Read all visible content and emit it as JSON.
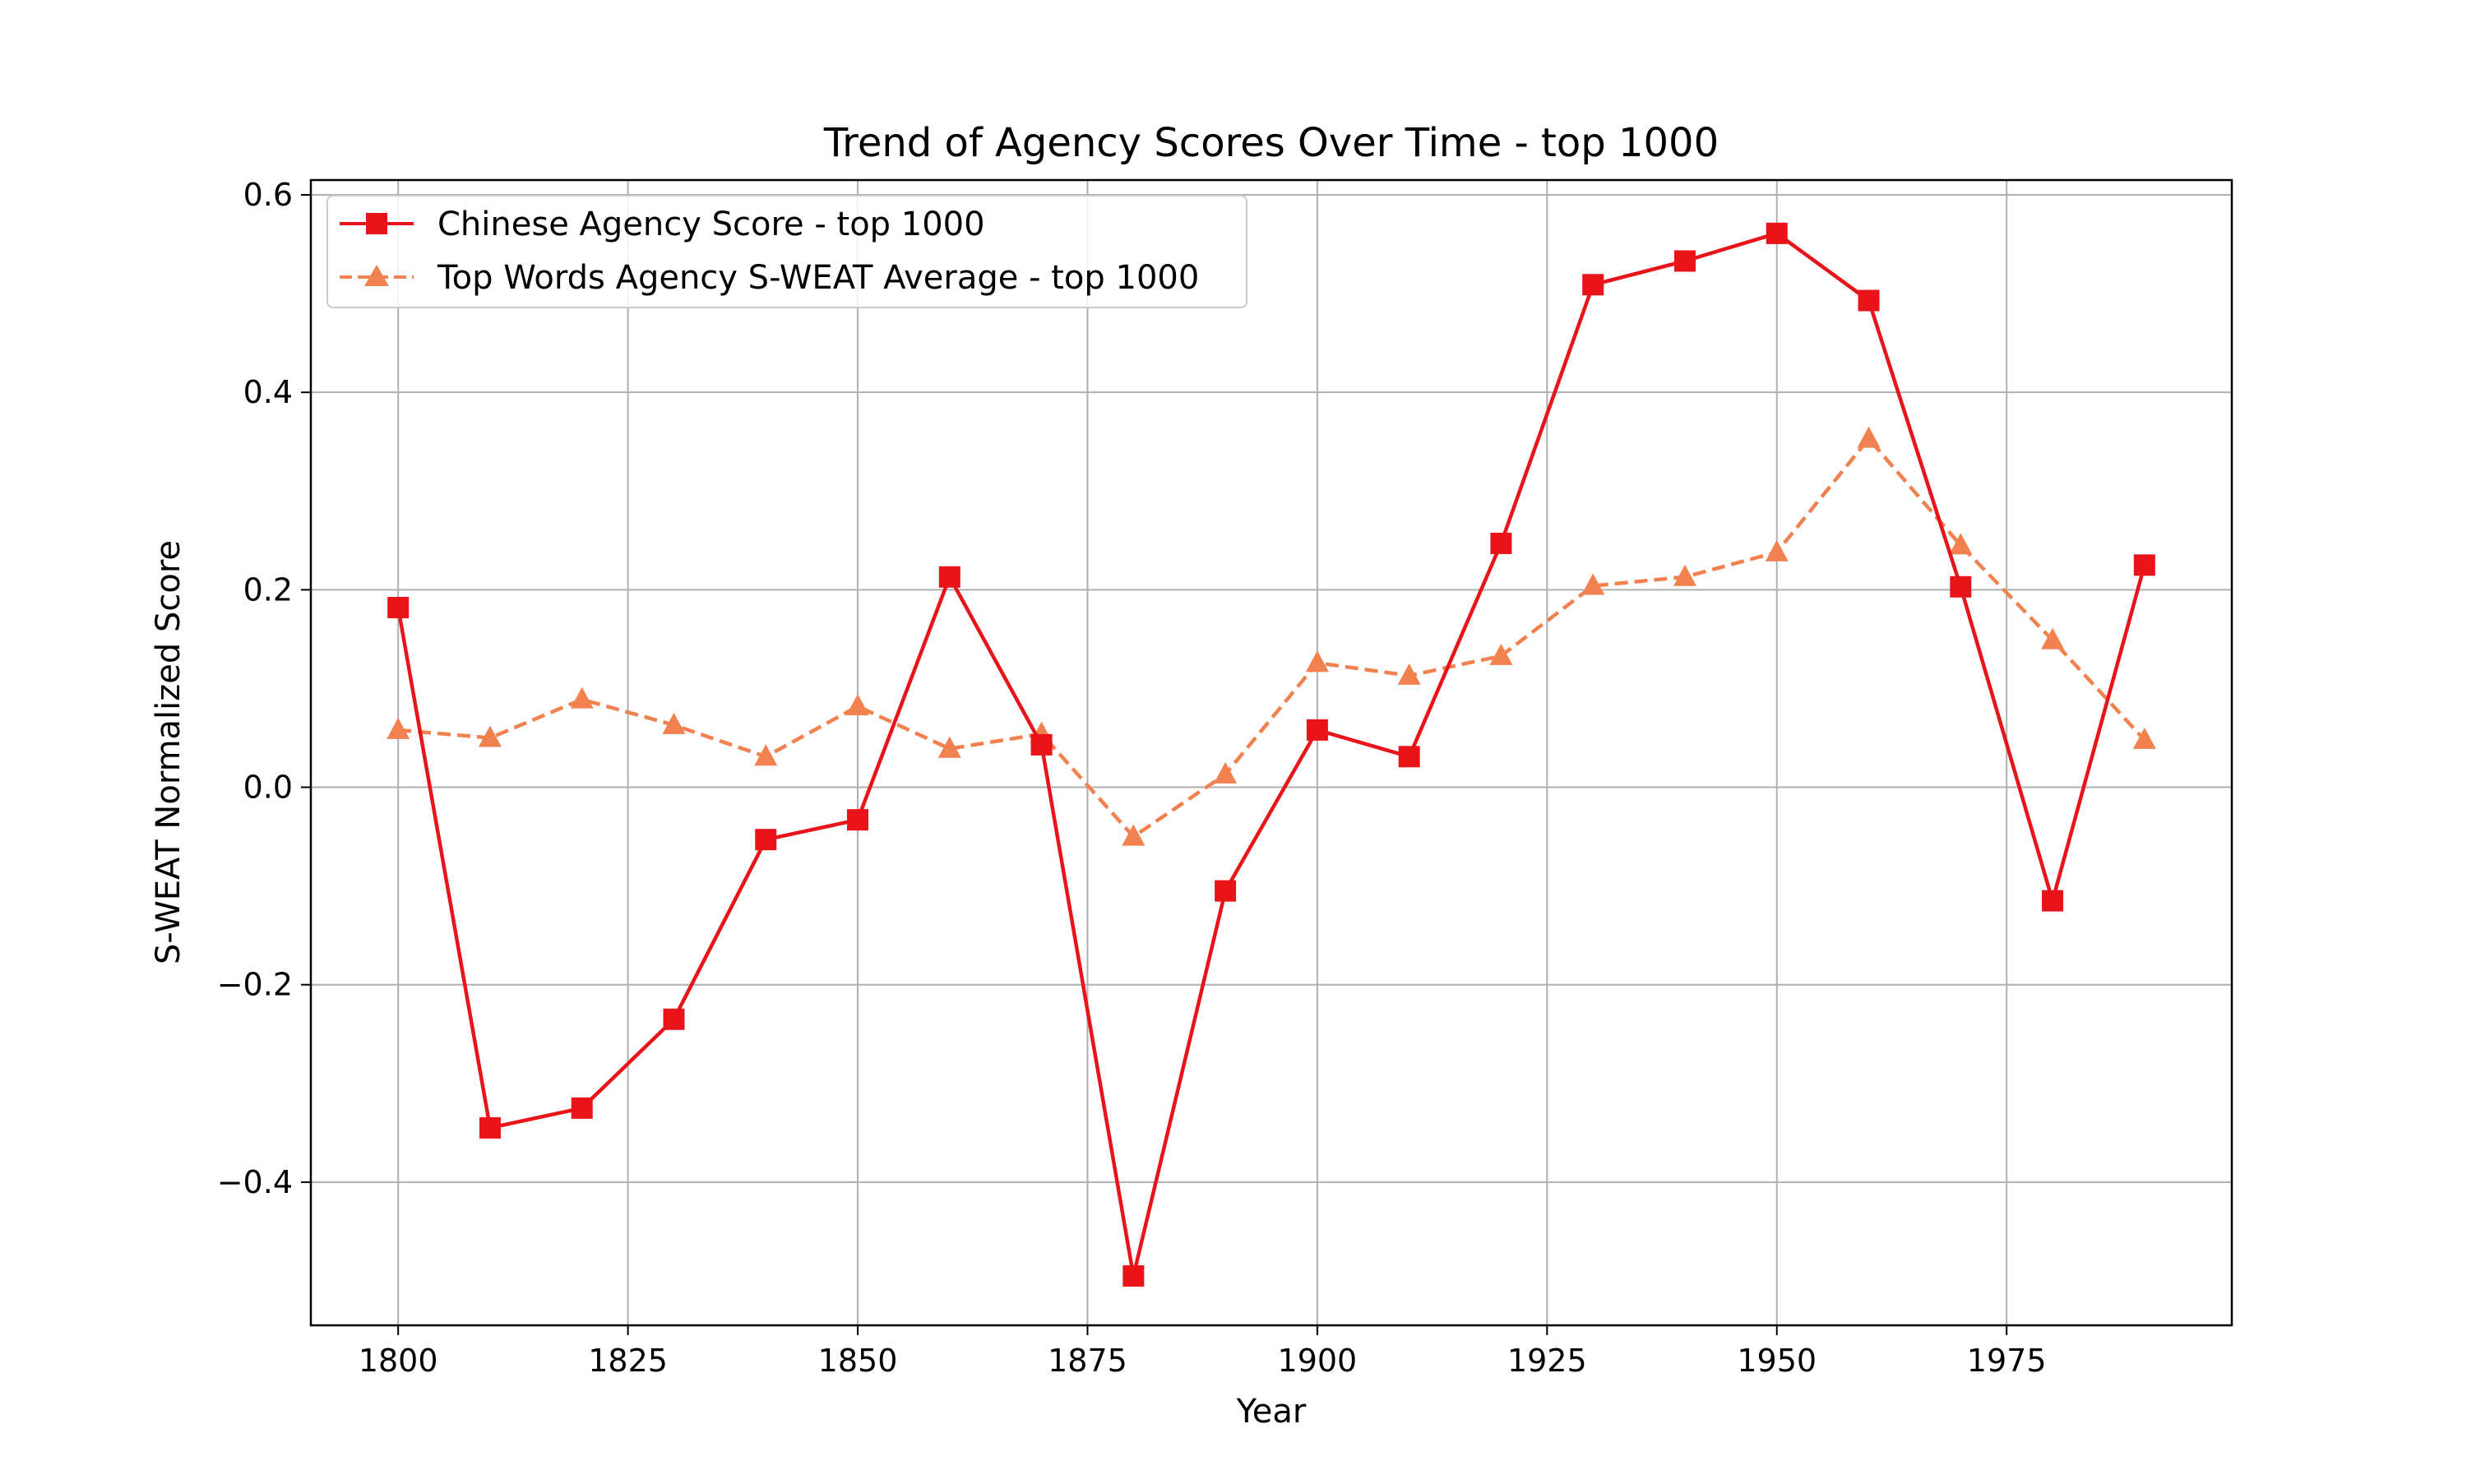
{
  "chart_data": {
    "type": "line",
    "title": "Trend of Agency Scores Over Time - top 1000",
    "xlabel": "Year",
    "ylabel": "S-WEAT Normalized Score",
    "xlim": [
      1790.5,
      1999.5
    ],
    "ylim": [
      -0.545,
      0.615
    ],
    "x_ticks": [
      1800,
      1825,
      1850,
      1875,
      1900,
      1925,
      1950,
      1975
    ],
    "x_tick_labels": [
      "1800",
      "1825",
      "1850",
      "1875",
      "1900",
      "1925",
      "1950",
      "1975"
    ],
    "y_ticks": [
      -0.4,
      -0.2,
      0.0,
      0.2,
      0.4,
      0.6
    ],
    "y_tick_labels": [
      "−0.4",
      "−0.2",
      "0.0",
      "0.2",
      "0.4",
      "0.6"
    ],
    "grid": true,
    "legend_position": "top-left",
    "x": [
      1800,
      1810,
      1820,
      1830,
      1840,
      1850,
      1860,
      1870,
      1880,
      1890,
      1900,
      1910,
      1920,
      1930,
      1940,
      1950,
      1960,
      1970,
      1980,
      1990
    ],
    "series": [
      {
        "name": "Chinese Agency Score - top 1000",
        "color": "#e8141a",
        "line_style": "solid",
        "marker": "square",
        "values": [
          0.182,
          -0.345,
          -0.325,
          -0.235,
          -0.053,
          -0.033,
          0.213,
          0.043,
          -0.495,
          -0.105,
          0.058,
          0.031,
          0.247,
          0.509,
          0.533,
          0.561,
          0.493,
          0.203,
          -0.115,
          0.225
        ]
      },
      {
        "name": "Top Words Agency S-WEAT Average - top 1000",
        "color": "#f28150",
        "line_style": "dashed",
        "marker": "triangle",
        "values": [
          0.058,
          0.05,
          0.089,
          0.063,
          0.031,
          0.082,
          0.039,
          0.054,
          -0.05,
          0.013,
          0.126,
          0.113,
          0.133,
          0.204,
          0.213,
          0.238,
          0.353,
          0.245,
          0.149,
          0.048
        ]
      }
    ]
  }
}
